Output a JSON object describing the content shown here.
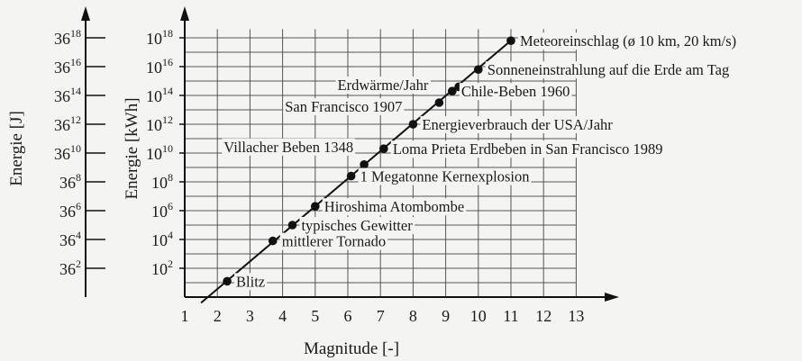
{
  "chart_data": {
    "type": "scatter",
    "xlabel": "Magnitude [-]",
    "ylabel_inner": "Energie [kWh]",
    "ylabel_outer": "Energie [J]",
    "x_ticks": [
      "1",
      "2",
      "3",
      "4",
      "5",
      "6",
      "7",
      "8",
      "9",
      "10",
      "11",
      "12",
      "13"
    ],
    "xlim": [
      1,
      13
    ],
    "y_log10_lim": [
      0,
      18.6
    ],
    "inner_ticks": [
      {
        "exp": 2,
        "base": "10",
        "sup": "2"
      },
      {
        "exp": 4,
        "base": "10",
        "sup": "4"
      },
      {
        "exp": 6,
        "base": "10",
        "sup": "6"
      },
      {
        "exp": 8,
        "base": "10",
        "sup": "8"
      },
      {
        "exp": 10,
        "base": "10",
        "sup": "10"
      },
      {
        "exp": 12,
        "base": "10",
        "sup": "12"
      },
      {
        "exp": 14,
        "base": "10",
        "sup": "14"
      },
      {
        "exp": 16,
        "base": "10",
        "sup": "16"
      },
      {
        "exp": 18,
        "base": "10",
        "sup": "18"
      }
    ],
    "outer_ticks": [
      {
        "exp": 2,
        "base": "36",
        "sup": "2"
      },
      {
        "exp": 4,
        "base": "36",
        "sup": "4"
      },
      {
        "exp": 6,
        "base": "36",
        "sup": "6"
      },
      {
        "exp": 8,
        "base": "36",
        "sup": "8"
      },
      {
        "exp": 10,
        "base": "36",
        "sup": "10"
      },
      {
        "exp": 12,
        "base": "36",
        "sup": "12"
      },
      {
        "exp": 14,
        "base": "36",
        "sup": "14"
      },
      {
        "exp": 16,
        "base": "36",
        "sup": "16"
      },
      {
        "exp": 18,
        "base": "36",
        "sup": "18"
      }
    ],
    "line": {
      "x": [
        1.5,
        11.1
      ],
      "log10_energy": [
        -0.4,
        18.0
      ]
    },
    "points": [
      {
        "label": "Blitz",
        "x": 2.3,
        "log10_energy": 1.1,
        "label_side": "right"
      },
      {
        "label": "mittlerer Tornado",
        "x": 3.7,
        "log10_energy": 3.9,
        "label_side": "right"
      },
      {
        "label": "typisches Gewitter",
        "x": 4.3,
        "log10_energy": 5.0,
        "label_side": "right"
      },
      {
        "label": "Hiroshima Atombombe",
        "x": 5.0,
        "log10_energy": 6.3,
        "label_side": "right"
      },
      {
        "label": "1 Megatonne Kernexplosion",
        "x": 6.1,
        "log10_energy": 8.4,
        "label_side": "right"
      },
      {
        "label": "Villacher Beben 1348",
        "x": 6.5,
        "log10_energy": 9.2,
        "label_side": "left"
      },
      {
        "label": "Loma Prieta Erdbeben in San Francisco 1989",
        "x": 7.1,
        "log10_energy": 10.3,
        "label_side": "right"
      },
      {
        "label": "San Francisco 1907",
        "x": 8.0,
        "log10_energy": 12.0,
        "label_side": "left"
      },
      {
        "label": "Energieverbrauch der USA/Jahr",
        "x": 8.0,
        "log10_energy": 12.0,
        "label_side": "right"
      },
      {
        "label": "Erdwärme/Jahr",
        "x": 8.8,
        "log10_energy": 13.5,
        "label_side": "left"
      },
      {
        "label": "Chile-Beben 1960",
        "x": 9.2,
        "log10_energy": 14.3,
        "label_side": "right"
      },
      {
        "label": "",
        "x": 9.4,
        "log10_energy": 14.6,
        "label_side": "right"
      },
      {
        "label": "Sonneneinstrahlung auf die Erde am Tag",
        "x": 10.0,
        "log10_energy": 15.8,
        "label_side": "right"
      },
      {
        "label": "Meteoreinschlag (ø 10 km, 20 km/s)",
        "x": 11.0,
        "log10_energy": 17.8,
        "label_side": "right"
      }
    ],
    "grid": true
  }
}
